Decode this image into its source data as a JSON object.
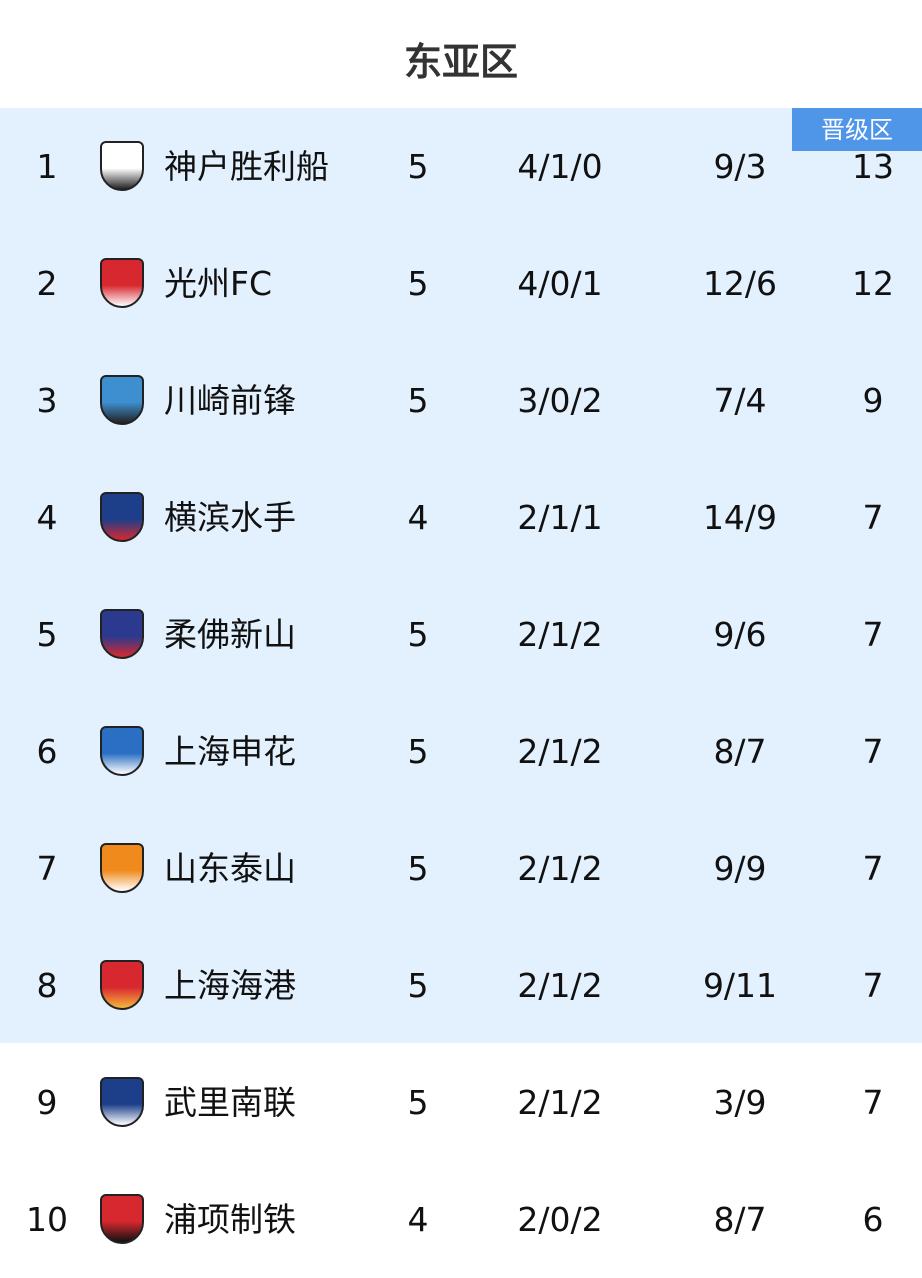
{
  "title": "东亚区",
  "badge": "晋级区",
  "colors": {
    "zone_bg": "#e3f0fd",
    "badge_bg": "#4f95e8"
  },
  "rows": [
    {
      "rank": "1",
      "team": "神户胜利船",
      "played": "5",
      "wdl": "4/1/0",
      "goals": "9/3",
      "pts": "13",
      "logo": "vissel-kobe-crest",
      "color": "#ffffff",
      "accent": "#222222"
    },
    {
      "rank": "2",
      "team": "光州FC",
      "played": "5",
      "wdl": "4/0/1",
      "goals": "12/6",
      "pts": "12",
      "logo": "gwangju-phoenix-crest",
      "color": "#d8282f",
      "accent": "#ffffff"
    },
    {
      "rank": "3",
      "team": "川崎前锋",
      "played": "5",
      "wdl": "3/0/2",
      "goals": "7/4",
      "pts": "9",
      "logo": "kawasaki-frontale-crest",
      "color": "#3d8fd0",
      "accent": "#222222"
    },
    {
      "rank": "4",
      "team": "横滨水手",
      "played": "4",
      "wdl": "2/1/1",
      "goals": "14/9",
      "pts": "7",
      "logo": "yokohama-marinos-crest",
      "color": "#1d3f8a",
      "accent": "#d8282f"
    },
    {
      "rank": "5",
      "team": "柔佛新山",
      "played": "5",
      "wdl": "2/1/2",
      "goals": "9/6",
      "pts": "7",
      "logo": "johor-crest",
      "color": "#2b3a8f",
      "accent": "#d8282f"
    },
    {
      "rank": "6",
      "team": "上海申花",
      "played": "5",
      "wdl": "2/1/2",
      "goals": "8/7",
      "pts": "7",
      "logo": "shenhua-crest",
      "color": "#2a6fc4",
      "accent": "#ffffff"
    },
    {
      "rank": "7",
      "team": "山东泰山",
      "played": "5",
      "wdl": "2/1/2",
      "goals": "9/9",
      "pts": "7",
      "logo": "taishan-crest",
      "color": "#f08a1c",
      "accent": "#ffffff"
    },
    {
      "rank": "8",
      "team": "上海海港",
      "played": "5",
      "wdl": "2/1/2",
      "goals": "9/11",
      "pts": "7",
      "logo": "port-crest",
      "color": "#d8282f",
      "accent": "#f3b63b"
    },
    {
      "rank": "9",
      "team": "武里南联",
      "played": "5",
      "wdl": "2/1/2",
      "goals": "3/9",
      "pts": "7",
      "logo": "buriram-crest",
      "color": "#1d3f8a",
      "accent": "#ffffff"
    },
    {
      "rank": "10",
      "team": "浦项制铁",
      "played": "4",
      "wdl": "2/0/2",
      "goals": "8/7",
      "pts": "6",
      "logo": "pohang-crest",
      "color": "#d8282f",
      "accent": "#111111"
    }
  ]
}
